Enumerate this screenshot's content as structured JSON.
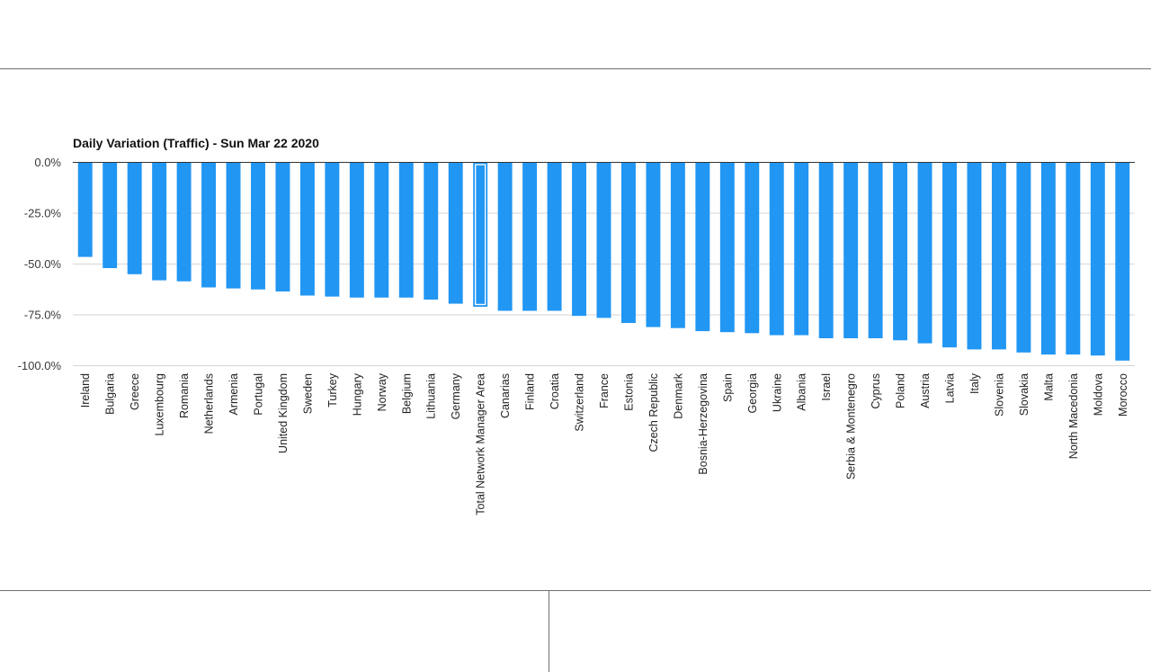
{
  "chart_data": {
    "type": "bar",
    "title": "Daily Variation (Traffic) - Sun Mar 22 2020",
    "xlabel": "",
    "ylabel": "",
    "ylim": [
      -100,
      0
    ],
    "yticks": [
      0,
      -25,
      -50,
      -75,
      -100
    ],
    "ytick_labels": [
      "0.0%",
      "-25.0%",
      "-50.0%",
      "-75.0%",
      "-100.0%"
    ],
    "grid": true,
    "bar_color": "#2196f3",
    "highlight_category": "Total Network Manager Area",
    "categories": [
      "Ireland",
      "Bulgaria",
      "Greece",
      "Luxembourg",
      "Romania",
      "Netherlands",
      "Armenia",
      "Portugal",
      "United Kingdom",
      "Sweden",
      "Turkey",
      "Hungary",
      "Norway",
      "Belgium",
      "Lithuania",
      "Germany",
      "Total Network Manager Area",
      "Canarias",
      "Finland",
      "Croatia",
      "Switzerland",
      "France",
      "Estonia",
      "Czech Republic",
      "Denmark",
      "Bosnia-Herzegovina",
      "Spain",
      "Georgia",
      "Ukraine",
      "Albania",
      "Israel",
      "Serbia & Montenegro",
      "Cyprus",
      "Poland",
      "Austria",
      "Latvia",
      "Italy",
      "Slovenia",
      "Slovakia",
      "Malta",
      "North Macedonia",
      "Moldova",
      "Morocco"
    ],
    "values": [
      -46.5,
      -52,
      -55,
      -58,
      -58.5,
      -61.5,
      -62,
      -62.5,
      -63.5,
      -65.5,
      -66,
      -66.5,
      -66.5,
      -66.5,
      -67.5,
      -69.5,
      -71,
      -73,
      -73,
      -73,
      -75.5,
      -76.5,
      -79,
      -81,
      -81.5,
      -83,
      -83.5,
      -84,
      -85,
      -85,
      -86.5,
      -86.5,
      -86.5,
      -87.5,
      -89,
      -91,
      -92,
      -92,
      -93.5,
      -94.5,
      -94.5,
      -95,
      -97.5
    ]
  }
}
